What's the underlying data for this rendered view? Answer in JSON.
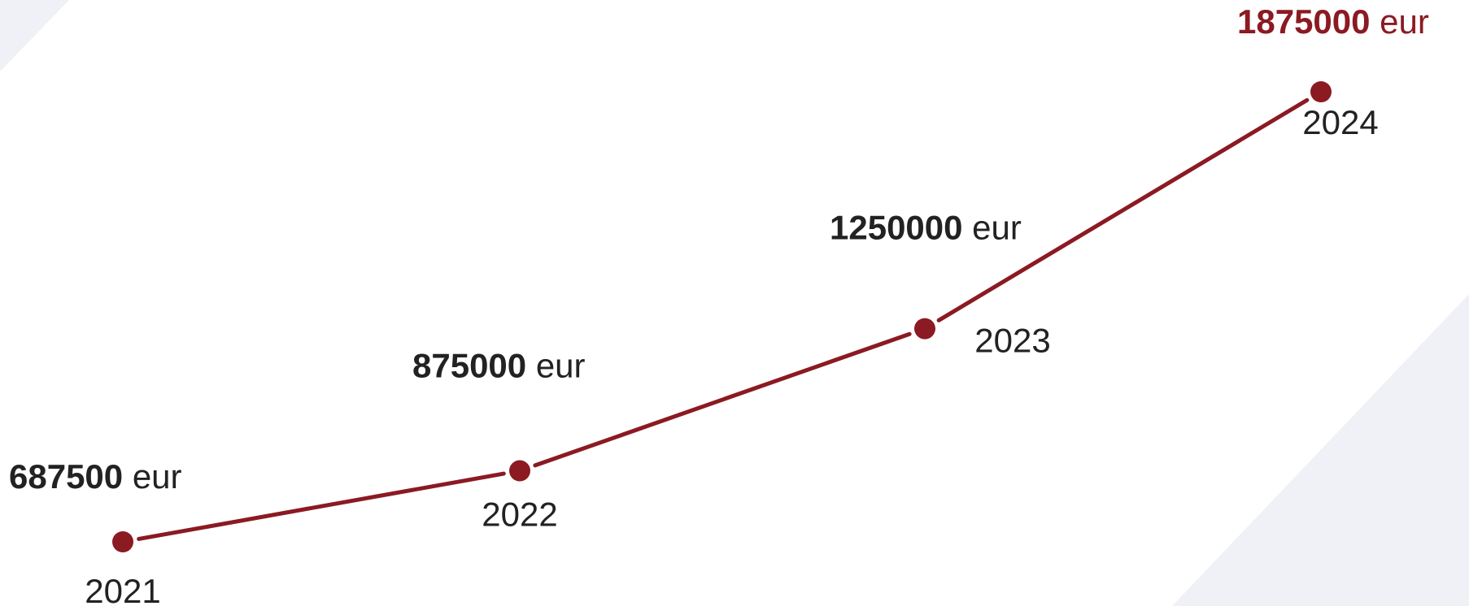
{
  "colors": {
    "accent": "#8b1a22",
    "text": "#222222",
    "background_shape": "#eff1f6"
  },
  "chart_data": {
    "type": "line",
    "categories": [
      "2021",
      "2022",
      "2023",
      "2024"
    ],
    "values": [
      687500,
      875000,
      1250000,
      1875000
    ],
    "value_labels": [
      "687500",
      "875000",
      "1250000",
      "1875000"
    ],
    "unit": "eur",
    "ylim": [
      687500,
      1875000
    ],
    "grid": false,
    "highlight_index": 3
  }
}
